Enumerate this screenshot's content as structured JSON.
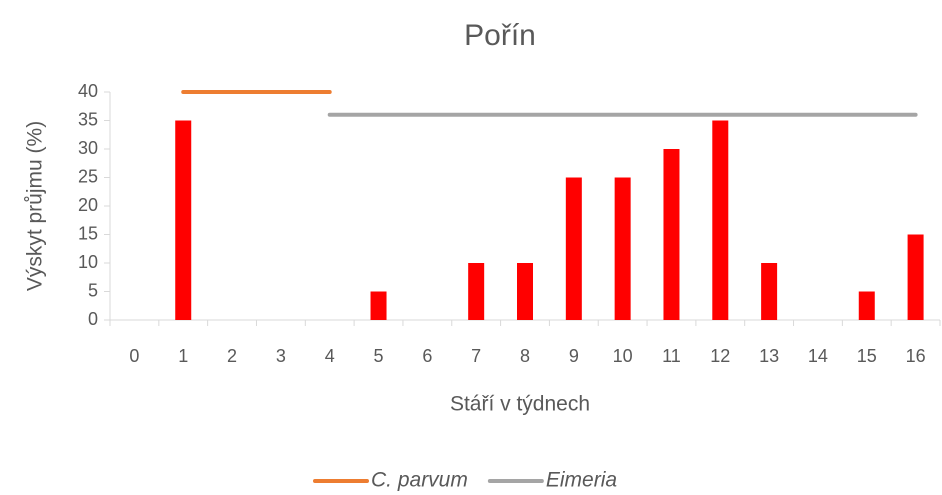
{
  "chart_data": {
    "type": "bar",
    "title": "Pořín",
    "x_label": "Stáří v týdnech",
    "y_label": "Výskyt průjmu (%)",
    "categories": [
      "0",
      "1",
      "2",
      "3",
      "4",
      "5",
      "6",
      "7",
      "8",
      "9",
      "10",
      "11",
      "12",
      "13",
      "14",
      "15",
      "16"
    ],
    "values": [
      0,
      35,
      0,
      0,
      0,
      5,
      0,
      10,
      10,
      25,
      25,
      30,
      35,
      10,
      0,
      5,
      15
    ],
    "color": "#ff0000",
    "series": [
      {
        "name": "C. parvum",
        "type": "line",
        "color": "#ed7d31",
        "values": [
          null,
          40,
          40,
          40,
          40,
          null,
          null,
          null,
          null,
          null,
          null,
          null,
          null,
          null,
          null,
          null,
          null
        ]
      },
      {
        "name": "Eimeria",
        "type": "line",
        "color": "#a5a5a5",
        "values": [
          null,
          null,
          null,
          null,
          36,
          36,
          36,
          36,
          36,
          36,
          36,
          36,
          36,
          36,
          36,
          36,
          36
        ]
      }
    ],
    "ylim": [
      0,
      40
    ],
    "yticks": [
      0,
      5,
      10,
      15,
      20,
      25,
      30,
      35,
      40
    ],
    "grid": false,
    "legend": "bottom"
  }
}
